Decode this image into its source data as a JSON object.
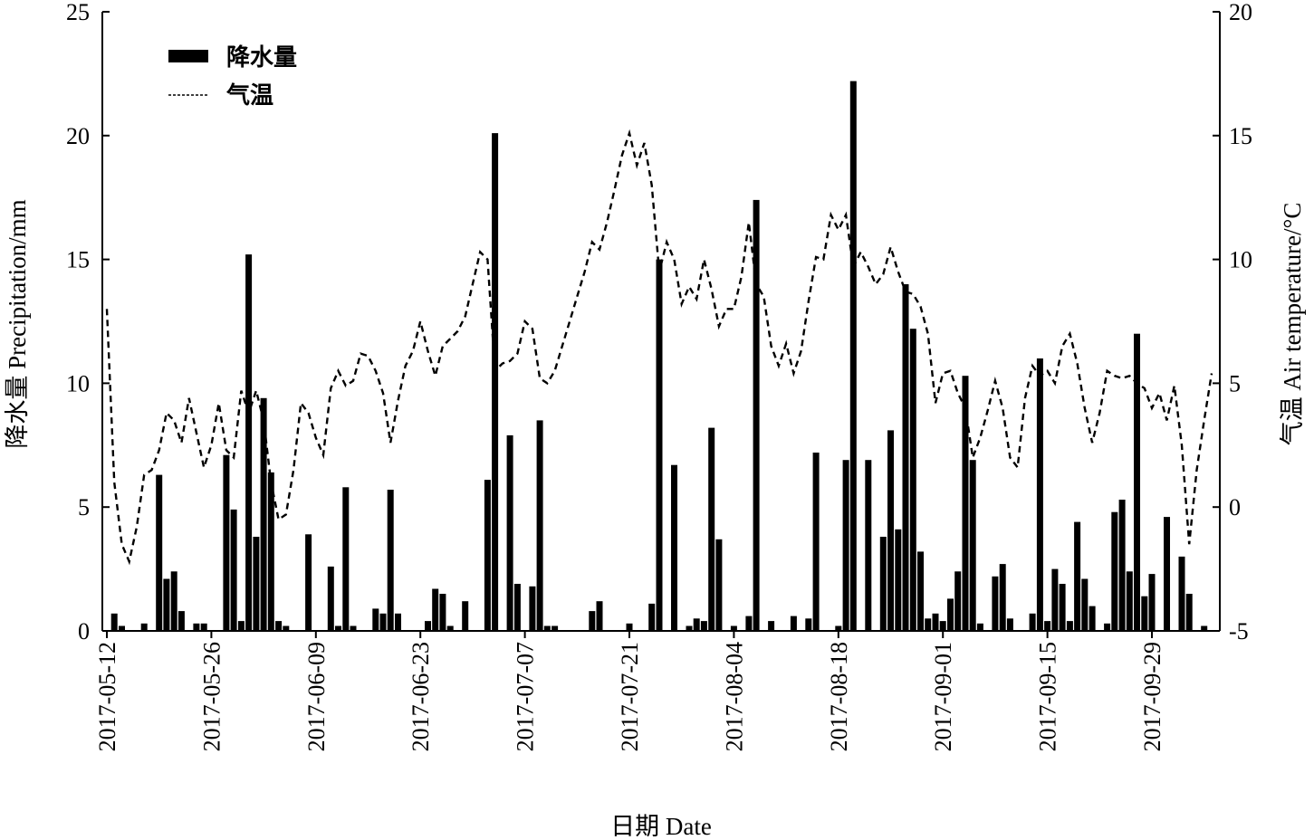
{
  "chart_data": {
    "type": "bar",
    "title": "",
    "xlabel": "日期 Date",
    "ylabel": "降水量 Precipitation/mm",
    "y2label": "气温 Air temperature/°C",
    "ylim": [
      0,
      25
    ],
    "y2lim": [
      -5,
      20
    ],
    "yticks": [
      "0",
      "5",
      "10",
      "15",
      "20",
      "25"
    ],
    "y2ticks": [
      "-5",
      "0",
      "5",
      "10",
      "15",
      "20"
    ],
    "x_start": "2017-05-12",
    "x_end": "2017-10-03",
    "xticks": [
      "2017-05-12",
      "2017-05-26",
      "2017-06-09",
      "2017-06-23",
      "2017-07-07",
      "2017-07-21",
      "2017-08-04",
      "2017-08-18",
      "2017-09-01",
      "2017-09-15",
      "2017-09-29"
    ],
    "legend_position": "top-left",
    "grid": false,
    "series": [
      {
        "name": "降水量",
        "kind": "bar",
        "points": [
          [
            "2017-05-13",
            0.7
          ],
          [
            "2017-05-14",
            0.2
          ],
          [
            "2017-05-17",
            0.3
          ],
          [
            "2017-05-19",
            6.3
          ],
          [
            "2017-05-20",
            2.1
          ],
          [
            "2017-05-21",
            2.4
          ],
          [
            "2017-05-22",
            0.8
          ],
          [
            "2017-05-24",
            0.3
          ],
          [
            "2017-05-25",
            0.3
          ],
          [
            "2017-05-28",
            7.1
          ],
          [
            "2017-05-29",
            4.9
          ],
          [
            "2017-05-30",
            0.4
          ],
          [
            "2017-05-31",
            15.2
          ],
          [
            "2017-06-01",
            3.8
          ],
          [
            "2017-06-02",
            9.4
          ],
          [
            "2017-06-03",
            6.4
          ],
          [
            "2017-06-04",
            0.4
          ],
          [
            "2017-06-05",
            0.2
          ],
          [
            "2017-06-08",
            3.9
          ],
          [
            "2017-06-11",
            2.6
          ],
          [
            "2017-06-12",
            0.2
          ],
          [
            "2017-06-13",
            5.8
          ],
          [
            "2017-06-14",
            0.2
          ],
          [
            "2017-06-17",
            0.9
          ],
          [
            "2017-06-18",
            0.7
          ],
          [
            "2017-06-19",
            5.7
          ],
          [
            "2017-06-20",
            0.7
          ],
          [
            "2017-06-24",
            0.4
          ],
          [
            "2017-06-25",
            1.7
          ],
          [
            "2017-06-26",
            1.5
          ],
          [
            "2017-06-27",
            0.2
          ],
          [
            "2017-06-29",
            1.2
          ],
          [
            "2017-07-02",
            6.1
          ],
          [
            "2017-07-03",
            20.1
          ],
          [
            "2017-07-05",
            7.9
          ],
          [
            "2017-07-06",
            1.9
          ],
          [
            "2017-07-08",
            1.8
          ],
          [
            "2017-07-09",
            8.5
          ],
          [
            "2017-07-10",
            0.2
          ],
          [
            "2017-07-11",
            0.2
          ],
          [
            "2017-07-16",
            0.8
          ],
          [
            "2017-07-17",
            1.2
          ],
          [
            "2017-07-21",
            0.3
          ],
          [
            "2017-07-24",
            1.1
          ],
          [
            "2017-07-25",
            15.0
          ],
          [
            "2017-07-27",
            6.7
          ],
          [
            "2017-07-29",
            0.2
          ],
          [
            "2017-07-30",
            0.5
          ],
          [
            "2017-07-31",
            0.4
          ],
          [
            "2017-08-01",
            8.2
          ],
          [
            "2017-08-02",
            3.7
          ],
          [
            "2017-08-04",
            0.2
          ],
          [
            "2017-08-06",
            0.6
          ],
          [
            "2017-08-07",
            17.4
          ],
          [
            "2017-08-09",
            0.4
          ],
          [
            "2017-08-12",
            0.6
          ],
          [
            "2017-08-14",
            0.5
          ],
          [
            "2017-08-15",
            7.2
          ],
          [
            "2017-08-18",
            0.2
          ],
          [
            "2017-08-19",
            6.9
          ],
          [
            "2017-08-20",
            22.2
          ],
          [
            "2017-08-22",
            6.9
          ],
          [
            "2017-08-24",
            3.8
          ],
          [
            "2017-08-25",
            8.1
          ],
          [
            "2017-08-26",
            4.1
          ],
          [
            "2017-08-27",
            14.0
          ],
          [
            "2017-08-28",
            12.2
          ],
          [
            "2017-08-29",
            3.2
          ],
          [
            "2017-08-30",
            0.5
          ],
          [
            "2017-08-31",
            0.7
          ],
          [
            "2017-09-01",
            0.4
          ],
          [
            "2017-09-02",
            1.3
          ],
          [
            "2017-09-03",
            2.4
          ],
          [
            "2017-09-04",
            10.3
          ],
          [
            "2017-09-05",
            6.9
          ],
          [
            "2017-09-06",
            0.3
          ],
          [
            "2017-09-08",
            2.2
          ],
          [
            "2017-09-09",
            2.7
          ],
          [
            "2017-09-10",
            0.5
          ],
          [
            "2017-09-13",
            0.7
          ],
          [
            "2017-09-14",
            11.0
          ],
          [
            "2017-09-15",
            0.4
          ],
          [
            "2017-09-16",
            2.5
          ],
          [
            "2017-09-17",
            1.9
          ],
          [
            "2017-09-18",
            0.4
          ],
          [
            "2017-09-19",
            4.4
          ],
          [
            "2017-09-20",
            2.1
          ],
          [
            "2017-09-21",
            1.0
          ],
          [
            "2017-09-23",
            0.3
          ],
          [
            "2017-09-24",
            4.8
          ],
          [
            "2017-09-25",
            5.3
          ],
          [
            "2017-09-26",
            2.4
          ],
          [
            "2017-09-27",
            12.0
          ],
          [
            "2017-09-28",
            1.4
          ],
          [
            "2017-09-29",
            2.3
          ],
          [
            "2017-10-01",
            4.6
          ],
          [
            "2017-10-03",
            3.0
          ],
          [
            "2017-10-04",
            1.5
          ],
          [
            "2017-10-06",
            0.2
          ]
        ]
      },
      {
        "name": "气温",
        "kind": "line",
        "axis": "right",
        "points": [
          [
            "2017-05-12",
            8.0
          ],
          [
            "2017-05-13",
            1.0
          ],
          [
            "2017-05-14",
            -1.5
          ],
          [
            "2017-05-15",
            -2.2
          ],
          [
            "2017-05-16",
            -0.8
          ],
          [
            "2017-05-17",
            1.3
          ],
          [
            "2017-05-18",
            1.5
          ],
          [
            "2017-05-19",
            2.3
          ],
          [
            "2017-05-20",
            3.8
          ],
          [
            "2017-05-21",
            3.5
          ],
          [
            "2017-05-22",
            2.6
          ],
          [
            "2017-05-23",
            4.4
          ],
          [
            "2017-05-24",
            3.0
          ],
          [
            "2017-05-25",
            1.6
          ],
          [
            "2017-05-26",
            2.5
          ],
          [
            "2017-05-27",
            4.2
          ],
          [
            "2017-05-28",
            2.3
          ],
          [
            "2017-05-29",
            2.0
          ],
          [
            "2017-05-30",
            4.7
          ],
          [
            "2017-05-31",
            3.8
          ],
          [
            "2017-06-01",
            4.7
          ],
          [
            "2017-06-02",
            3.5
          ],
          [
            "2017-06-03",
            1.0
          ],
          [
            "2017-06-04",
            -0.5
          ],
          [
            "2017-06-05",
            -0.3
          ],
          [
            "2017-06-06",
            1.5
          ],
          [
            "2017-06-07",
            4.2
          ],
          [
            "2017-06-08",
            3.8
          ],
          [
            "2017-06-09",
            2.8
          ],
          [
            "2017-06-10",
            2.1
          ],
          [
            "2017-06-11",
            4.8
          ],
          [
            "2017-06-12",
            5.5
          ],
          [
            "2017-06-13",
            4.9
          ],
          [
            "2017-06-14",
            5.1
          ],
          [
            "2017-06-15",
            6.2
          ],
          [
            "2017-06-16",
            6.1
          ],
          [
            "2017-06-17",
            5.5
          ],
          [
            "2017-06-18",
            4.6
          ],
          [
            "2017-06-19",
            2.6
          ],
          [
            "2017-06-20",
            4.3
          ],
          [
            "2017-06-21",
            5.7
          ],
          [
            "2017-06-22",
            6.3
          ],
          [
            "2017-06-23",
            7.5
          ],
          [
            "2017-06-24",
            6.3
          ],
          [
            "2017-06-25",
            5.3
          ],
          [
            "2017-06-26",
            6.5
          ],
          [
            "2017-06-27",
            6.8
          ],
          [
            "2017-06-28",
            7.1
          ],
          [
            "2017-06-29",
            7.7
          ],
          [
            "2017-06-30",
            9.0
          ],
          [
            "2017-07-01",
            10.3
          ],
          [
            "2017-07-02",
            10.0
          ],
          [
            "2017-07-03",
            5.5
          ],
          [
            "2017-07-04",
            5.8
          ],
          [
            "2017-07-05",
            5.9
          ],
          [
            "2017-07-06",
            6.2
          ],
          [
            "2017-07-07",
            7.5
          ],
          [
            "2017-07-08",
            7.2
          ],
          [
            "2017-07-09",
            5.2
          ],
          [
            "2017-07-10",
            5.0
          ],
          [
            "2017-07-11",
            5.5
          ],
          [
            "2017-07-12",
            6.5
          ],
          [
            "2017-07-13",
            7.5
          ],
          [
            "2017-07-14",
            8.5
          ],
          [
            "2017-07-15",
            9.5
          ],
          [
            "2017-07-16",
            10.7
          ],
          [
            "2017-07-17",
            10.4
          ],
          [
            "2017-07-18",
            11.5
          ],
          [
            "2017-07-19",
            12.8
          ],
          [
            "2017-07-20",
            14.2
          ],
          [
            "2017-07-21",
            15.1
          ],
          [
            "2017-07-22",
            13.8
          ],
          [
            "2017-07-23",
            14.7
          ],
          [
            "2017-07-24",
            13.0
          ],
          [
            "2017-07-25",
            9.5
          ],
          [
            "2017-07-26",
            10.7
          ],
          [
            "2017-07-27",
            10.0
          ],
          [
            "2017-07-28",
            8.2
          ],
          [
            "2017-07-29",
            8.9
          ],
          [
            "2017-07-30",
            8.4
          ],
          [
            "2017-07-31",
            10.0
          ],
          [
            "2017-08-01",
            8.8
          ],
          [
            "2017-08-02",
            7.3
          ],
          [
            "2017-08-03",
            8.0
          ],
          [
            "2017-08-04",
            8.0
          ],
          [
            "2017-08-05",
            9.3
          ],
          [
            "2017-08-06",
            11.5
          ],
          [
            "2017-08-07",
            9.0
          ],
          [
            "2017-08-08",
            8.5
          ],
          [
            "2017-08-09",
            6.5
          ],
          [
            "2017-08-10",
            5.7
          ],
          [
            "2017-08-11",
            6.6
          ],
          [
            "2017-08-12",
            5.4
          ],
          [
            "2017-08-13",
            6.3
          ],
          [
            "2017-08-14",
            8.3
          ],
          [
            "2017-08-15",
            10.1
          ],
          [
            "2017-08-16",
            10.0
          ],
          [
            "2017-08-17",
            11.8
          ],
          [
            "2017-08-18",
            11.2
          ],
          [
            "2017-08-19",
            11.8
          ],
          [
            "2017-08-20",
            9.7
          ],
          [
            "2017-08-21",
            10.3
          ],
          [
            "2017-08-22",
            9.7
          ],
          [
            "2017-08-23",
            9.0
          ],
          [
            "2017-08-24",
            9.4
          ],
          [
            "2017-08-25",
            10.5
          ],
          [
            "2017-08-26",
            9.5
          ],
          [
            "2017-08-27",
            8.7
          ],
          [
            "2017-08-28",
            8.6
          ],
          [
            "2017-08-29",
            8.1
          ],
          [
            "2017-08-30",
            7.0
          ],
          [
            "2017-08-31",
            4.2
          ],
          [
            "2017-09-01",
            5.4
          ],
          [
            "2017-09-02",
            5.5
          ],
          [
            "2017-09-03",
            4.6
          ],
          [
            "2017-09-04",
            4.0
          ],
          [
            "2017-09-05",
            2.0
          ],
          [
            "2017-09-06",
            2.8
          ],
          [
            "2017-09-07",
            3.9
          ],
          [
            "2017-09-08",
            5.1
          ],
          [
            "2017-09-09",
            4.0
          ],
          [
            "2017-09-10",
            2.0
          ],
          [
            "2017-09-11",
            1.6
          ],
          [
            "2017-09-12",
            4.4
          ],
          [
            "2017-09-13",
            5.7
          ],
          [
            "2017-09-14",
            5.3
          ],
          [
            "2017-09-15",
            5.5
          ],
          [
            "2017-09-16",
            5.0
          ],
          [
            "2017-09-17",
            6.5
          ],
          [
            "2017-09-18",
            7.0
          ],
          [
            "2017-09-19",
            5.8
          ],
          [
            "2017-09-20",
            4.0
          ],
          [
            "2017-09-21",
            2.6
          ],
          [
            "2017-09-22",
            3.8
          ],
          [
            "2017-09-23",
            5.5
          ],
          [
            "2017-09-24",
            5.3
          ],
          [
            "2017-09-25",
            5.2
          ],
          [
            "2017-09-26",
            5.3
          ],
          [
            "2017-09-27",
            5.0
          ],
          [
            "2017-09-28",
            4.8
          ],
          [
            "2017-09-29",
            4.0
          ],
          [
            "2017-09-30",
            4.6
          ],
          [
            "2017-10-01",
            3.5
          ],
          [
            "2017-10-02",
            4.9
          ],
          [
            "2017-10-03",
            2.5
          ],
          [
            "2017-10-04",
            -1.5
          ],
          [
            "2017-10-05",
            1.5
          ],
          [
            "2017-10-06",
            3.5
          ],
          [
            "2017-10-07",
            5.4
          ]
        ]
      }
    ]
  }
}
